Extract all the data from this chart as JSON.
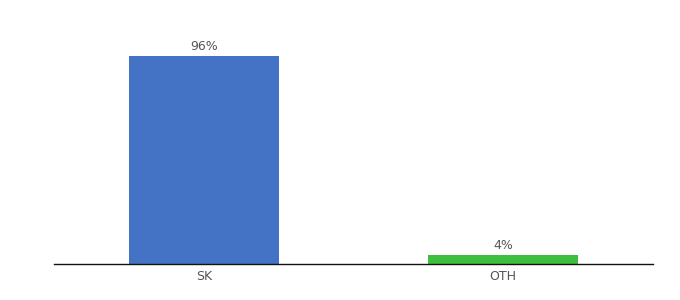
{
  "categories": [
    "SK",
    "OTH"
  ],
  "values": [
    96,
    4
  ],
  "bar_colors": [
    "#4472c4",
    "#3dbf3d"
  ],
  "bar_labels": [
    "96%",
    "4%"
  ],
  "background_color": "#ffffff",
  "ylim": [
    0,
    108
  ],
  "xlim": [
    -0.5,
    1.5
  ],
  "figsize": [
    6.8,
    3.0
  ],
  "dpi": 100,
  "label_fontsize": 9,
  "tick_fontsize": 9,
  "bar_width": 0.5,
  "x_positions": [
    0.0,
    1.0
  ]
}
